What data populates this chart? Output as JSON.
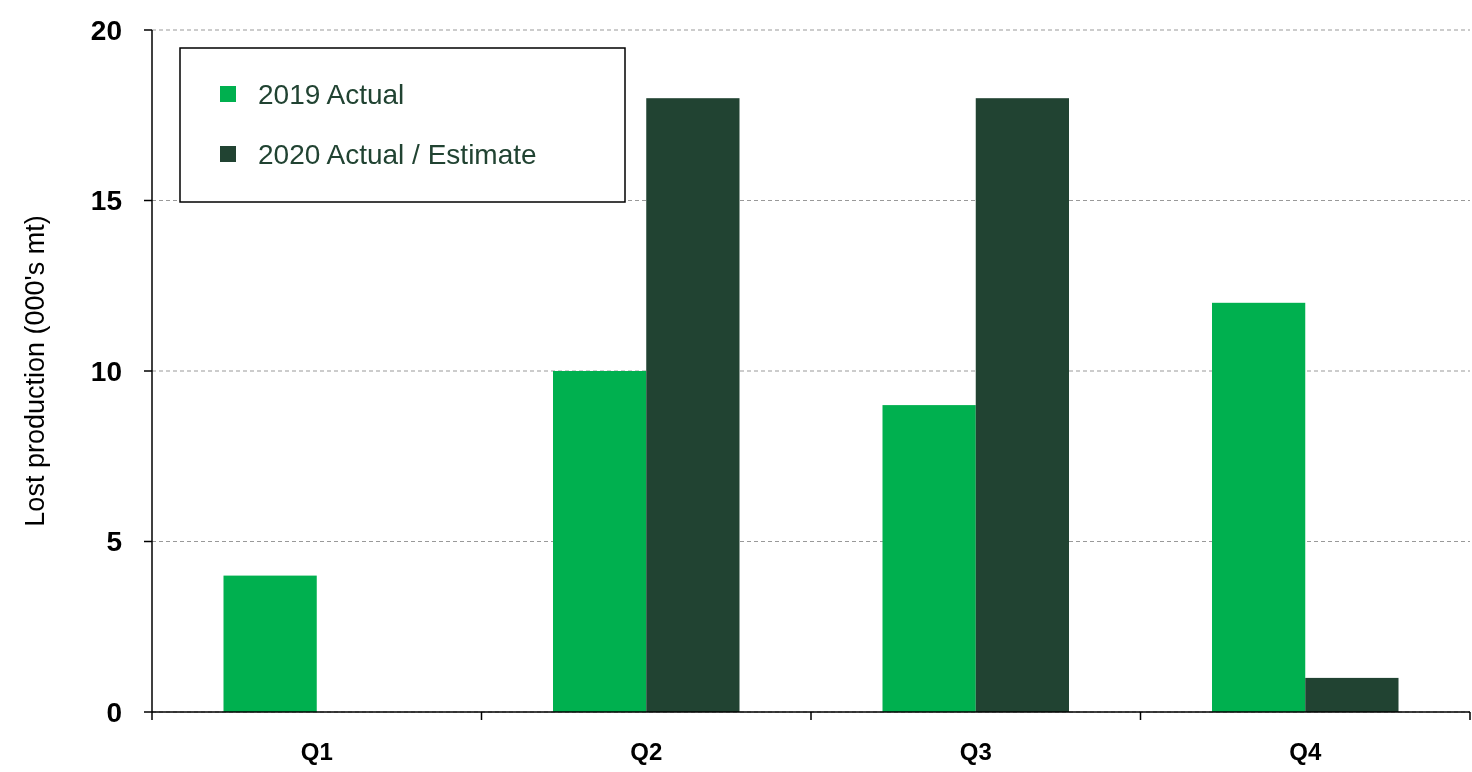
{
  "chart_data": {
    "type": "bar",
    "ylabel": "Lost production (000's mt)",
    "categories": [
      "Q1",
      "Q2",
      "Q3",
      "Q4"
    ],
    "series": [
      {
        "name": "2019 Actual",
        "color": "#00b04f",
        "values": [
          4,
          10,
          9,
          12
        ]
      },
      {
        "name": "2020 Actual / Estimate",
        "color": "#214332",
        "values": [
          null,
          18,
          18,
          1
        ]
      }
    ],
    "ylim": [
      0,
      20
    ],
    "yticks": [
      0,
      5,
      10,
      15,
      20
    ],
    "grid": "y",
    "legend": "top left"
  }
}
